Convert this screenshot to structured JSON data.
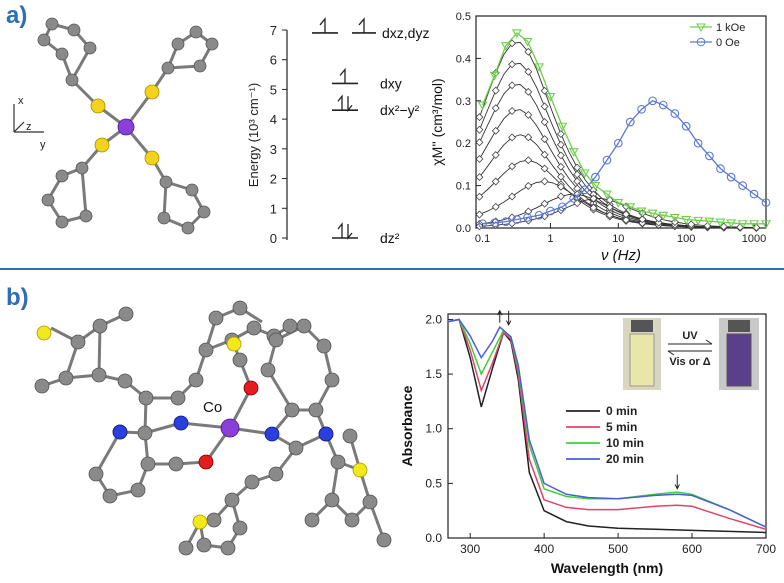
{
  "panel_a_label": "a)",
  "panel_b_label": "b)",
  "mol_a_axes": {
    "x": "x",
    "y": "y",
    "z": "z"
  },
  "mol_b_metal": "Co",
  "energy_diagram": {
    "ylabel": "Energy (10³ cm⁻¹)",
    "ticks": [
      "0",
      "1",
      "2",
      "3",
      "4",
      "5",
      "6",
      "7"
    ],
    "levels": [
      {
        "label": "dxz,dyz",
        "energy": 6.9,
        "electrons": "1,1"
      },
      {
        "label": "dxy",
        "energy": 5.2,
        "electrons": "1"
      },
      {
        "label": "dx²−y²",
        "energy": 4.3,
        "electrons": "2"
      },
      {
        "label": "dz²",
        "energy": 0.0,
        "electrons": "2"
      }
    ]
  },
  "chart_data": [
    {
      "type": "scatter",
      "xlabel": "ν (Hz)",
      "ylabel": "χM'' (cm³/mol)",
      "xscale": "log",
      "xlim": [
        0.08,
        1500
      ],
      "ylim": [
        0,
        0.5
      ],
      "x_ticks": [
        "0.1",
        "1",
        "10",
        "100",
        "1000"
      ],
      "y_ticks": [
        "0.0",
        "0.1",
        "0.2",
        "0.3",
        "0.4",
        "0.5"
      ],
      "legend": [
        "1 kOe",
        "0 Oe"
      ],
      "legend_position": "top-right",
      "series": [
        {
          "name": "1 kOe",
          "color": "#6ecf4a",
          "peak_x": 0.32,
          "peak_y": 0.46,
          "x": [
            0.1,
            0.15,
            0.22,
            0.32,
            0.46,
            0.68,
            1,
            1.5,
            2.2,
            3.2,
            4.6,
            6.8,
            10,
            15,
            22,
            32,
            46,
            68,
            100,
            150,
            220,
            320,
            460,
            680,
            1000,
            1500
          ],
          "y": [
            0.29,
            0.36,
            0.43,
            0.46,
            0.44,
            0.38,
            0.31,
            0.24,
            0.18,
            0.13,
            0.1,
            0.08,
            0.06,
            0.05,
            0.04,
            0.035,
            0.03,
            0.025,
            0.02,
            0.018,
            0.016,
            0.014,
            0.012,
            0.01,
            0.01,
            0.01
          ]
        },
        {
          "name": "0 Oe",
          "color": "#5b79d4",
          "peak_x": 32,
          "peak_y": 0.3,
          "x": [
            0.1,
            0.15,
            0.22,
            0.32,
            0.46,
            0.68,
            1,
            1.5,
            2.2,
            3.2,
            4.6,
            6.8,
            10,
            15,
            22,
            32,
            46,
            68,
            100,
            150,
            220,
            320,
            460,
            680,
            1000,
            1500
          ],
          "y": [
            0.01,
            0.012,
            0.015,
            0.02,
            0.025,
            0.03,
            0.04,
            0.05,
            0.07,
            0.09,
            0.12,
            0.16,
            0.2,
            0.25,
            0.28,
            0.3,
            0.29,
            0.27,
            0.24,
            0.2,
            0.17,
            0.14,
            0.12,
            0.1,
            0.08,
            0.06
          ]
        }
      ],
      "intermediate_peaks": [
        {
          "x": 0.32,
          "y": 0.44
        },
        {
          "x": 0.32,
          "y": 0.39
        },
        {
          "x": 0.32,
          "y": 0.34
        },
        {
          "x": 0.33,
          "y": 0.28
        },
        {
          "x": 0.36,
          "y": 0.22
        },
        {
          "x": 0.45,
          "y": 0.16
        },
        {
          "x": 0.8,
          "y": 0.11
        },
        {
          "x": 2.2,
          "y": 0.08
        },
        {
          "x": 5,
          "y": 0.07
        }
      ]
    },
    {
      "type": "line",
      "xlabel": "Wavelength (nm)",
      "ylabel": "Absorbance",
      "xlim": [
        270,
        700
      ],
      "ylim": [
        0,
        2.05
      ],
      "x_ticks": [
        "300",
        "400",
        "500",
        "600",
        "700"
      ],
      "y_ticks": [
        "0.0",
        "0.5",
        "1.0",
        "1.5",
        "2.0"
      ],
      "legend_position": "center-right",
      "series": [
        {
          "name": "0 min",
          "color": "#222222",
          "x": [
            270,
            285,
            300,
            315,
            330,
            345,
            355,
            365,
            380,
            400,
            430,
            460,
            500,
            550,
            600,
            650,
            700
          ],
          "y": [
            1.98,
            2.0,
            1.65,
            1.2,
            1.55,
            1.88,
            1.8,
            1.45,
            0.6,
            0.25,
            0.15,
            0.11,
            0.09,
            0.08,
            0.07,
            0.06,
            0.05
          ]
        },
        {
          "name": "5 min",
          "color": "#e0446a",
          "x": [
            270,
            285,
            300,
            315,
            330,
            345,
            355,
            365,
            380,
            400,
            430,
            460,
            500,
            550,
            580,
            600,
            650,
            700
          ],
          "y": [
            1.98,
            2.0,
            1.72,
            1.35,
            1.6,
            1.88,
            1.82,
            1.5,
            0.72,
            0.35,
            0.28,
            0.26,
            0.26,
            0.29,
            0.3,
            0.29,
            0.18,
            0.08
          ]
        },
        {
          "name": "10 min",
          "color": "#3fcf3a",
          "x": [
            270,
            285,
            300,
            315,
            330,
            345,
            355,
            365,
            380,
            400,
            430,
            460,
            500,
            550,
            580,
            600,
            650,
            700
          ],
          "y": [
            1.98,
            2.0,
            1.78,
            1.5,
            1.7,
            1.9,
            1.84,
            1.55,
            0.85,
            0.45,
            0.38,
            0.36,
            0.36,
            0.4,
            0.42,
            0.4,
            0.26,
            0.1
          ]
        },
        {
          "name": "20 min",
          "color": "#4a5fd6",
          "x": [
            270,
            285,
            300,
            315,
            330,
            340,
            355,
            365,
            380,
            400,
            430,
            460,
            500,
            550,
            580,
            600,
            650,
            700
          ],
          "y": [
            1.98,
            2.0,
            1.85,
            1.65,
            1.8,
            1.93,
            1.84,
            1.58,
            0.9,
            0.5,
            0.4,
            0.37,
            0.36,
            0.39,
            0.4,
            0.39,
            0.26,
            0.1
          ]
        }
      ],
      "inset": {
        "forward": "UV",
        "reverse": "Vis or Δ"
      }
    }
  ]
}
